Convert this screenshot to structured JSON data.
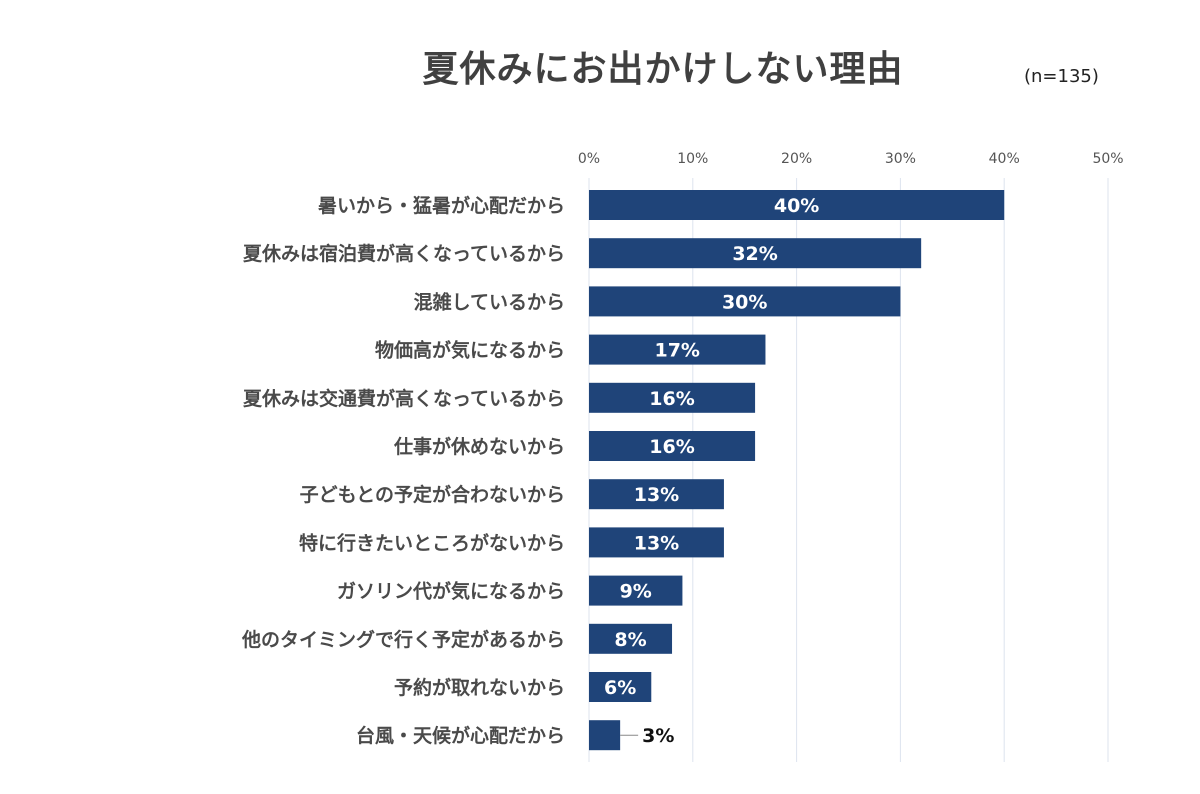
{
  "title": "夏休みにお出かけしない理由",
  "sample_size": "(n=135)",
  "colors": {
    "bar": "#1f4479",
    "inside_label": "#ffffff",
    "outside_label": "#111111",
    "grid": "#dde3ee"
  },
  "chart_data": {
    "type": "bar",
    "orientation": "horizontal",
    "title": "夏休みにお出かけしない理由",
    "xlim": [
      0,
      50
    ],
    "ticks": [
      0,
      10,
      20,
      30,
      40,
      50
    ],
    "tick_labels": [
      "0%",
      "10%",
      "20%",
      "30%",
      "40%",
      "50%"
    ],
    "grid": true,
    "categories": [
      "暑いから・猛暑が心配だから",
      "夏休みは宿泊費が高くなっているから",
      "混雑しているから",
      "物価高が気になるから",
      "夏休みは交通費が高くなっているから",
      "仕事が休めないから",
      "子どもとの予定が合わないから",
      "特に行きたいところがないから",
      "ガソリン代が気になるから",
      "他のタイミングで行く予定があるから",
      "予約が取れないから",
      "台風・天候が心配だから"
    ],
    "values": [
      40,
      32,
      30,
      17,
      16,
      16,
      13,
      13,
      9,
      8,
      6,
      3
    ],
    "value_labels": [
      "40%",
      "32%",
      "30%",
      "17%",
      "16%",
      "16%",
      "13%",
      "13%",
      "9%",
      "8%",
      "6%",
      "3%"
    ]
  }
}
